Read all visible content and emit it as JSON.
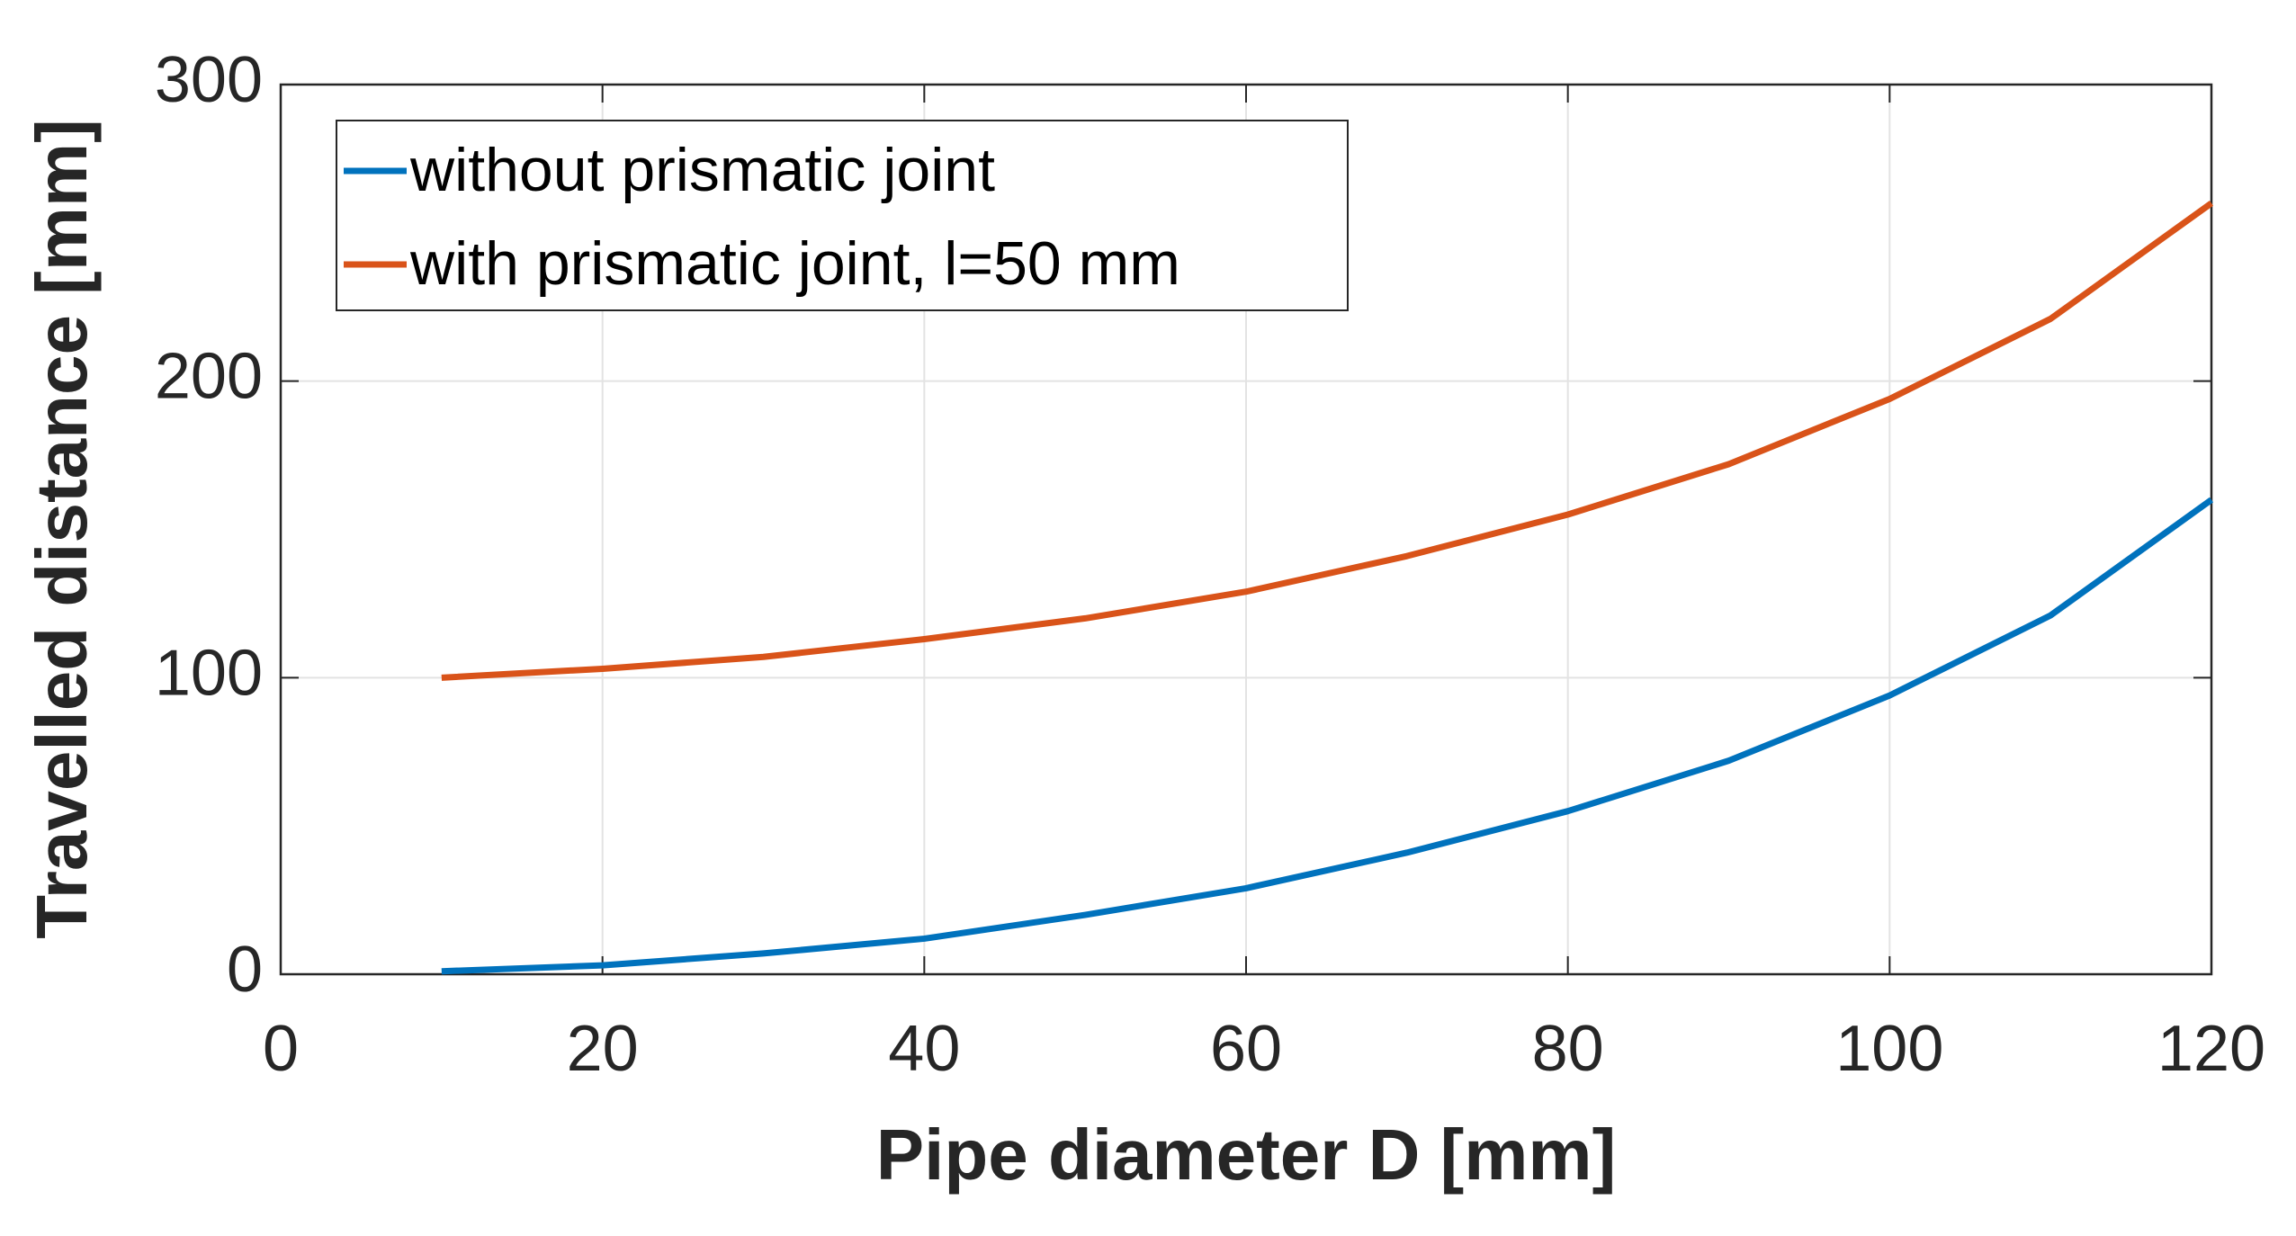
{
  "chart_data": {
    "type": "line",
    "xlabel": "Pipe diameter D [mm]",
    "ylabel": "Travelled distance [mm]",
    "x": [
      10,
      20,
      30,
      40,
      50,
      60,
      70,
      80,
      90,
      100,
      110,
      120
    ],
    "series": [
      {
        "name": "without prismatic joint",
        "color": "#0072bd",
        "values": [
          1,
          3,
          7,
          12,
          20,
          29,
          41,
          55,
          72,
          94,
          121,
          160
        ]
      },
      {
        "name": "with prismatic joint, l=50 mm",
        "color": "#d95319",
        "values": [
          100,
          103,
          107,
          113,
          120,
          129,
          141,
          155,
          172,
          194,
          221,
          260
        ]
      }
    ],
    "xlim": [
      0,
      120
    ],
    "xticks": [
      0,
      20,
      40,
      60,
      80,
      100,
      120
    ],
    "ylim": [
      0,
      300
    ],
    "yticks": [
      0,
      100,
      200,
      300
    ],
    "grid": true,
    "legend": "northwest"
  }
}
